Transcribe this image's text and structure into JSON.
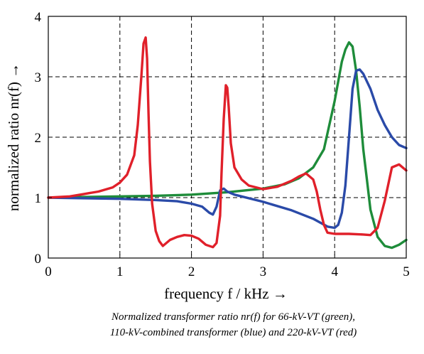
{
  "chart_data": {
    "type": "line",
    "xlabel": "frequency f / kHz →",
    "ylabel": "normalized ratio nr(f) →",
    "xlim": [
      0,
      5
    ],
    "ylim": [
      0,
      4
    ],
    "xticks": [
      "0",
      "1",
      "2",
      "3",
      "4",
      "5"
    ],
    "yticks": [
      "0",
      "1",
      "2",
      "3",
      "4"
    ],
    "grid": "dashed",
    "caption": [
      "Normalized transformer ratio nr(f) for 66-kV-VT (green),",
      "110-kV-combined transformer (blue) and 220-kV-VT (red)"
    ],
    "series": [
      {
        "color": "#1e8c3a",
        "x": [
          0,
          0.5,
          1.0,
          1.5,
          2.0,
          2.5,
          3.0,
          3.3,
          3.5,
          3.7,
          3.85,
          4.0,
          4.1,
          4.15,
          4.2,
          4.25,
          4.3,
          4.35,
          4.4,
          4.45,
          4.5,
          4.6,
          4.7,
          4.8,
          4.9,
          5.0
        ],
        "y": [
          1.0,
          1.01,
          1.02,
          1.03,
          1.05,
          1.09,
          1.15,
          1.22,
          1.32,
          1.5,
          1.8,
          2.6,
          3.25,
          3.45,
          3.57,
          3.5,
          3.1,
          2.5,
          1.8,
          1.3,
          0.8,
          0.35,
          0.2,
          0.17,
          0.22,
          0.3
        ]
      },
      {
        "color": "#2a4aa8",
        "x": [
          0,
          0.5,
          1.0,
          1.5,
          1.8,
          2.0,
          2.15,
          2.25,
          2.3,
          2.35,
          2.4,
          2.45,
          2.5,
          2.6,
          3.0,
          3.4,
          3.7,
          3.9,
          4.0,
          4.05,
          4.1,
          4.15,
          4.2,
          4.25,
          4.3,
          4.35,
          4.4,
          4.5,
          4.6,
          4.7,
          4.8,
          4.9,
          5.0
        ],
        "y": [
          1.0,
          0.99,
          0.98,
          0.96,
          0.94,
          0.9,
          0.85,
          0.75,
          0.72,
          0.85,
          1.12,
          1.15,
          1.1,
          1.05,
          0.93,
          0.79,
          0.65,
          0.52,
          0.5,
          0.55,
          0.75,
          1.2,
          2.0,
          2.8,
          3.1,
          3.12,
          3.05,
          2.8,
          2.45,
          2.2,
          2.0,
          1.87,
          1.82
        ]
      },
      {
        "color": "#e0202a",
        "x": [
          0,
          0.3,
          0.5,
          0.7,
          0.9,
          1.0,
          1.1,
          1.2,
          1.25,
          1.3,
          1.33,
          1.36,
          1.38,
          1.4,
          1.42,
          1.45,
          1.5,
          1.55,
          1.6,
          1.7,
          1.8,
          1.9,
          2.0,
          2.1,
          2.2,
          2.3,
          2.35,
          2.4,
          2.42,
          2.45,
          2.48,
          2.5,
          2.52,
          2.55,
          2.6,
          2.7,
          2.8,
          3.0,
          3.2,
          3.4,
          3.5,
          3.6,
          3.7,
          3.75,
          3.8,
          3.85,
          3.9,
          4.0,
          4.2,
          4.4,
          4.5,
          4.6,
          4.7,
          4.8,
          4.9,
          5.0
        ],
        "y": [
          1.0,
          1.02,
          1.06,
          1.1,
          1.17,
          1.25,
          1.38,
          1.7,
          2.2,
          3.0,
          3.55,
          3.65,
          3.3,
          2.4,
          1.6,
          0.9,
          0.45,
          0.28,
          0.2,
          0.3,
          0.35,
          0.38,
          0.37,
          0.32,
          0.22,
          0.18,
          0.25,
          0.7,
          1.4,
          2.3,
          2.86,
          2.82,
          2.5,
          1.9,
          1.5,
          1.3,
          1.2,
          1.14,
          1.18,
          1.28,
          1.35,
          1.4,
          1.3,
          1.1,
          0.8,
          0.55,
          0.42,
          0.4,
          0.4,
          0.39,
          0.38,
          0.5,
          0.95,
          1.5,
          1.55,
          1.45
        ]
      }
    ]
  }
}
